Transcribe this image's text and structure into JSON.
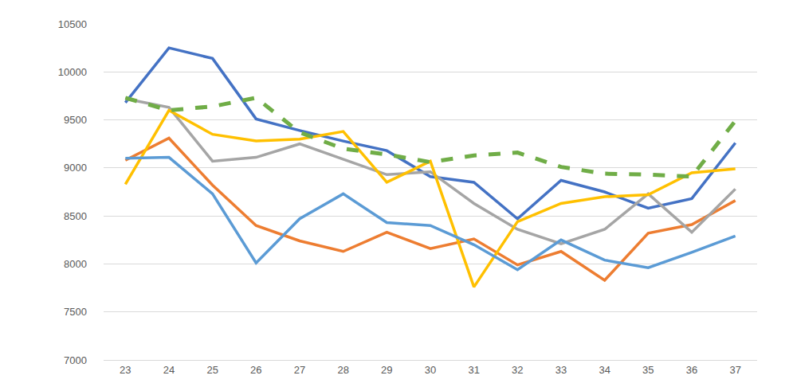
{
  "chart_data": {
    "type": "line",
    "x": [
      23,
      24,
      25,
      26,
      27,
      28,
      29,
      30,
      31,
      32,
      33,
      34,
      35,
      36,
      37
    ],
    "xlim": [
      22.5,
      37.5
    ],
    "xticks": [
      23,
      24,
      25,
      26,
      27,
      28,
      29,
      30,
      31,
      32,
      33,
      34,
      35,
      36,
      37
    ],
    "ylim": [
      7000,
      10500
    ],
    "yticks": [
      7000,
      7500,
      8000,
      8500,
      9000,
      9500,
      10000,
      10500
    ],
    "grid": true,
    "series": [
      {
        "color": "#4472c4",
        "line_style": "solid",
        "values": [
          9680,
          10250,
          10140,
          9510,
          9390,
          9280,
          9180,
          8910,
          8850,
          8470,
          8870,
          8750,
          8580,
          8680,
          9260
        ]
      },
      {
        "color": "#ed7d31",
        "line_style": "solid",
        "values": [
          9080,
          9310,
          8820,
          8400,
          8240,
          8130,
          8330,
          8160,
          8260,
          7990,
          8130,
          7830,
          8320,
          8410,
          8660
        ]
      },
      {
        "color": "#a5a5a5",
        "line_style": "solid",
        "values": [
          9720,
          9630,
          9070,
          9110,
          9250,
          9090,
          8930,
          8960,
          8630,
          8360,
          8210,
          8360,
          8730,
          8330,
          8780
        ]
      },
      {
        "color": "#ffc000",
        "line_style": "solid",
        "values": [
          8830,
          9600,
          9350,
          9280,
          9300,
          9380,
          8850,
          9070,
          7760,
          8440,
          8630,
          8700,
          8720,
          8950,
          8990
        ]
      },
      {
        "color": "#5b9bd5",
        "line_style": "solid",
        "values": [
          9100,
          9110,
          8730,
          8010,
          8470,
          8730,
          8430,
          8400,
          8200,
          7940,
          8250,
          8040,
          7960,
          8120,
          8290
        ]
      },
      {
        "color": "#70ad47",
        "line_style": "dashed",
        "values": [
          9730,
          9600,
          9640,
          9730,
          9370,
          9200,
          9140,
          9060,
          9130,
          9160,
          9010,
          8940,
          8930,
          8910,
          9490
        ]
      }
    ]
  }
}
